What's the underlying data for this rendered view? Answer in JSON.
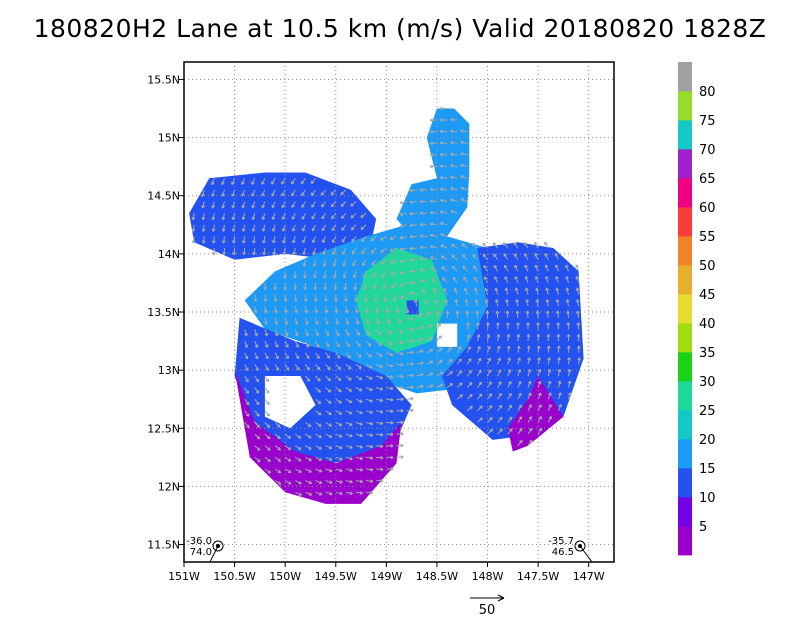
{
  "title": "180820H2 Lane at 10.5 km (m/s) Valid 20180820  1828Z",
  "reference_vector": {
    "label": "50",
    "magnitude": 50
  },
  "corner_labels": {
    "bottom_left": [
      "-36.0",
      "74.0"
    ],
    "bottom_right": [
      "-35.7",
      "46.5"
    ]
  },
  "chart_data": {
    "type": "heatmap",
    "title": "180820H2 Lane at 10.5 km (m/s) Valid 20180820  1828Z",
    "xlabel": "",
    "ylabel": "",
    "xlim": [
      -151.0,
      -146.75
    ],
    "ylim": [
      11.35,
      15.65
    ],
    "grid": true,
    "x_ticks": [
      {
        "value": -151.0,
        "label": "151W"
      },
      {
        "value": -150.5,
        "label": "150.5W"
      },
      {
        "value": -150.0,
        "label": "150W"
      },
      {
        "value": -149.5,
        "label": "149.5W"
      },
      {
        "value": -149.0,
        "label": "149W"
      },
      {
        "value": -148.5,
        "label": "148.5W"
      },
      {
        "value": -148.0,
        "label": "148W"
      },
      {
        "value": -147.5,
        "label": "147.5W"
      },
      {
        "value": -147.0,
        "label": "147W"
      }
    ],
    "y_ticks": [
      {
        "value": 11.5,
        "label": "11.5N"
      },
      {
        "value": 12.0,
        "label": "12N"
      },
      {
        "value": 12.5,
        "label": "12.5N"
      },
      {
        "value": 13.0,
        "label": "13N"
      },
      {
        "value": 13.5,
        "label": "13.5N"
      },
      {
        "value": 14.0,
        "label": "14N"
      },
      {
        "value": 14.5,
        "label": "14.5N"
      },
      {
        "value": 15.0,
        "label": "15N"
      },
      {
        "value": 15.5,
        "label": "15.5N"
      }
    ],
    "storm_center": {
      "lon": -148.75,
      "lat": 13.55
    },
    "colorbar": {
      "levels": [
        5,
        10,
        15,
        20,
        25,
        30,
        35,
        40,
        45,
        50,
        55,
        60,
        65,
        70,
        75,
        80
      ],
      "colors": [
        "#9900cc",
        "#7300e6",
        "#2452f0",
        "#1d9af5",
        "#14c8c8",
        "#21d79c",
        "#19d319",
        "#a0dc0e",
        "#e6dc32",
        "#e6af2d",
        "#f08228",
        "#fa3c3c",
        "#f00082",
        "#9f20c8",
        "#14c8c8",
        "#96dc28",
        "#a0a0a0"
      ]
    },
    "wind_regions": [
      {
        "name": "north arm",
        "polygon": [
          [
            -148.5,
            15.25
          ],
          [
            -148.33,
            15.25
          ],
          [
            -148.18,
            15.12
          ],
          [
            -148.18,
            14.7
          ],
          [
            -148.2,
            14.4
          ],
          [
            -148.4,
            14.15
          ],
          [
            -148.75,
            14.15
          ],
          [
            -148.9,
            14.3
          ],
          [
            -148.75,
            14.6
          ],
          [
            -148.5,
            14.65
          ],
          [
            -148.6,
            15.0
          ]
        ],
        "value": 17
      },
      {
        "name": "northwest block",
        "polygon": [
          [
            -150.75,
            14.65
          ],
          [
            -150.2,
            14.7
          ],
          [
            -149.8,
            14.7
          ],
          [
            -149.35,
            14.55
          ],
          [
            -149.1,
            14.3
          ],
          [
            -149.15,
            14.1
          ],
          [
            -149.5,
            13.95
          ],
          [
            -150.0,
            14.0
          ],
          [
            -150.5,
            13.95
          ],
          [
            -150.9,
            14.1
          ],
          [
            -150.95,
            14.35
          ]
        ],
        "value": 11
      },
      {
        "name": "central region",
        "polygon": [
          [
            -149.7,
            14.0
          ],
          [
            -149.2,
            14.15
          ],
          [
            -148.8,
            14.25
          ],
          [
            -148.4,
            14.15
          ],
          [
            -148.0,
            14.05
          ],
          [
            -147.75,
            13.8
          ],
          [
            -147.6,
            13.35
          ],
          [
            -147.9,
            13.0
          ],
          [
            -148.2,
            12.85
          ],
          [
            -148.7,
            12.8
          ],
          [
            -149.2,
            12.95
          ],
          [
            -149.7,
            13.2
          ],
          [
            -150.2,
            13.35
          ],
          [
            -150.4,
            13.6
          ],
          [
            -150.1,
            13.85
          ]
        ],
        "value": 18
      },
      {
        "name": "east block",
        "polygon": [
          [
            -148.1,
            14.05
          ],
          [
            -147.7,
            14.1
          ],
          [
            -147.35,
            14.05
          ],
          [
            -147.1,
            13.85
          ],
          [
            -147.05,
            13.1
          ],
          [
            -147.25,
            12.6
          ],
          [
            -147.5,
            12.45
          ],
          [
            -147.95,
            12.4
          ],
          [
            -148.35,
            12.7
          ],
          [
            -148.45,
            12.95
          ],
          [
            -148.2,
            13.2
          ],
          [
            -148.0,
            13.55
          ]
        ],
        "value": 12
      },
      {
        "name": "southwest block",
        "polygon": [
          [
            -150.45,
            13.45
          ],
          [
            -149.9,
            13.25
          ],
          [
            -149.5,
            13.15
          ],
          [
            -149.0,
            12.95
          ],
          [
            -148.75,
            12.7
          ],
          [
            -148.9,
            12.4
          ],
          [
            -149.2,
            12.25
          ],
          [
            -149.55,
            12.2
          ],
          [
            -150.0,
            12.3
          ],
          [
            -150.35,
            12.6
          ],
          [
            -150.5,
            12.95
          ]
        ],
        "value": 12
      },
      {
        "name": "south edge",
        "polygon": [
          [
            -150.5,
            13.0
          ],
          [
            -150.3,
            12.55
          ],
          [
            -149.9,
            12.3
          ],
          [
            -149.5,
            12.2
          ],
          [
            -149.05,
            12.35
          ],
          [
            -148.85,
            12.55
          ],
          [
            -148.9,
            12.2
          ],
          [
            -149.25,
            11.85
          ],
          [
            -149.6,
            11.85
          ],
          [
            -150.0,
            11.95
          ],
          [
            -150.35,
            12.25
          ]
        ],
        "value": 4
      },
      {
        "name": "southeast edge",
        "polygon": [
          [
            -147.5,
            12.95
          ],
          [
            -147.25,
            12.6
          ],
          [
            -147.6,
            12.35
          ],
          [
            -147.75,
            12.3
          ],
          [
            -147.8,
            12.5
          ],
          [
            -147.6,
            12.75
          ]
        ],
        "value": 4
      },
      {
        "name": "eyewall",
        "polygon": [
          [
            -149.2,
            13.85
          ],
          [
            -148.9,
            14.05
          ],
          [
            -148.55,
            13.95
          ],
          [
            -148.4,
            13.6
          ],
          [
            -148.55,
            13.25
          ],
          [
            -148.9,
            13.15
          ],
          [
            -149.2,
            13.3
          ],
          [
            -149.3,
            13.6
          ]
        ],
        "value": 28
      },
      {
        "name": "eye",
        "polygon": [
          [
            -148.8,
            13.6
          ],
          [
            -148.68,
            13.6
          ],
          [
            -148.68,
            13.48
          ],
          [
            -148.8,
            13.48
          ]
        ],
        "value": 12
      }
    ],
    "data_gaps": [
      {
        "polygon": [
          [
            -150.2,
            12.95
          ],
          [
            -149.85,
            12.95
          ],
          [
            -149.7,
            12.7
          ],
          [
            -149.95,
            12.5
          ],
          [
            -150.2,
            12.6
          ]
        ]
      },
      {
        "polygon": [
          [
            -148.5,
            13.4
          ],
          [
            -148.3,
            13.4
          ],
          [
            -148.3,
            13.2
          ],
          [
            -148.5,
            13.2
          ]
        ]
      }
    ],
    "wind_field": {
      "type": "cyclonic",
      "center_lon": -148.75,
      "center_lat": 13.55,
      "grid_step_deg": 0.1
    }
  }
}
